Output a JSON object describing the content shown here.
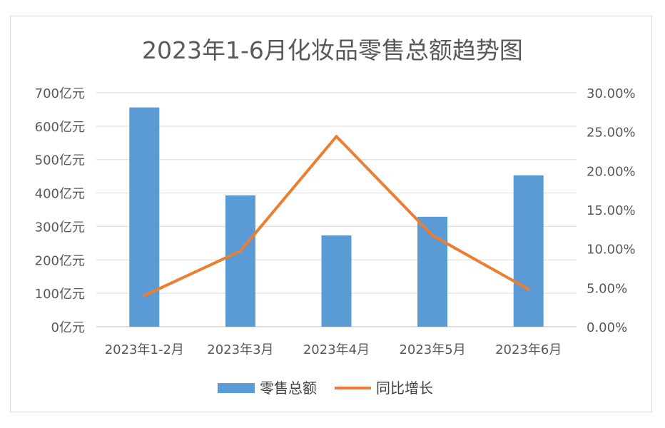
{
  "chart_data": {
    "type": "bar",
    "title": "2023年1-6月化妆品零售总额趋势图",
    "categories": [
      "2023年1-2月",
      "2023年3月",
      "2023年4月",
      "2023年5月",
      "2023年6月"
    ],
    "series": [
      {
        "name": "零售总额",
        "type": "bar",
        "axis": "left",
        "values": [
          656,
          393,
          273,
          329,
          453
        ],
        "color": "#5B9BD5"
      },
      {
        "name": "同比增长",
        "type": "line",
        "axis": "right",
        "values": [
          0.04,
          0.097,
          0.244,
          0.117,
          0.048
        ],
        "color": "#ED7D31"
      }
    ],
    "y_left": {
      "min": 0,
      "max": 700,
      "ticks": [
        "0亿元",
        "100亿元",
        "200亿元",
        "300亿元",
        "400亿元",
        "500亿元",
        "600亿元",
        "700亿元"
      ]
    },
    "y_right": {
      "min": 0,
      "max": 0.3,
      "ticks": [
        "0.00%",
        "5.00%",
        "10.00%",
        "15.00%",
        "20.00%",
        "25.00%",
        "30.00%"
      ]
    },
    "grid": true,
    "legend": "bottom"
  }
}
